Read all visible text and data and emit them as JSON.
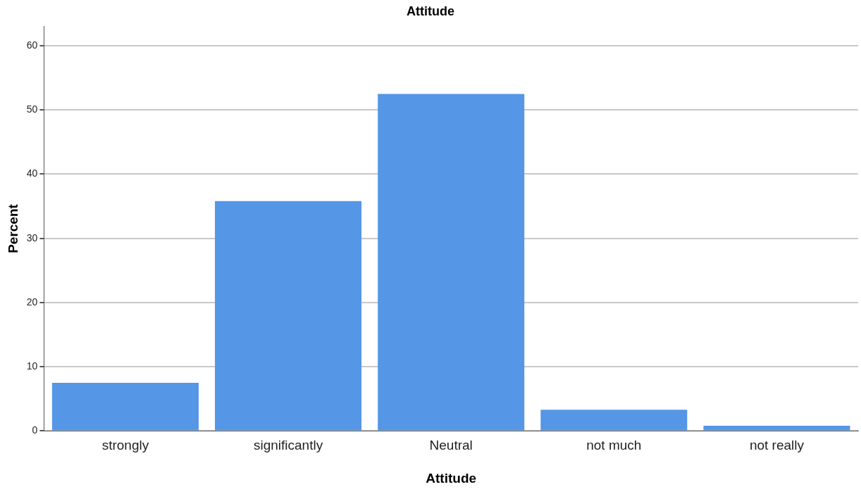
{
  "chart_data": {
    "type": "bar",
    "title": "Attitude",
    "xlabel": "Attitude",
    "ylabel": "Percent",
    "categories": [
      "strongly",
      "significantly",
      "Neutral",
      "not much",
      "not really"
    ],
    "values": [
      7.5,
      35.8,
      52.5,
      3.3,
      0.8
    ],
    "color": "#5596e6",
    "ylim": [
      0,
      63
    ],
    "yticks": [
      0,
      10,
      20,
      30,
      40,
      50,
      60
    ],
    "grid": "y",
    "legend": false
  }
}
